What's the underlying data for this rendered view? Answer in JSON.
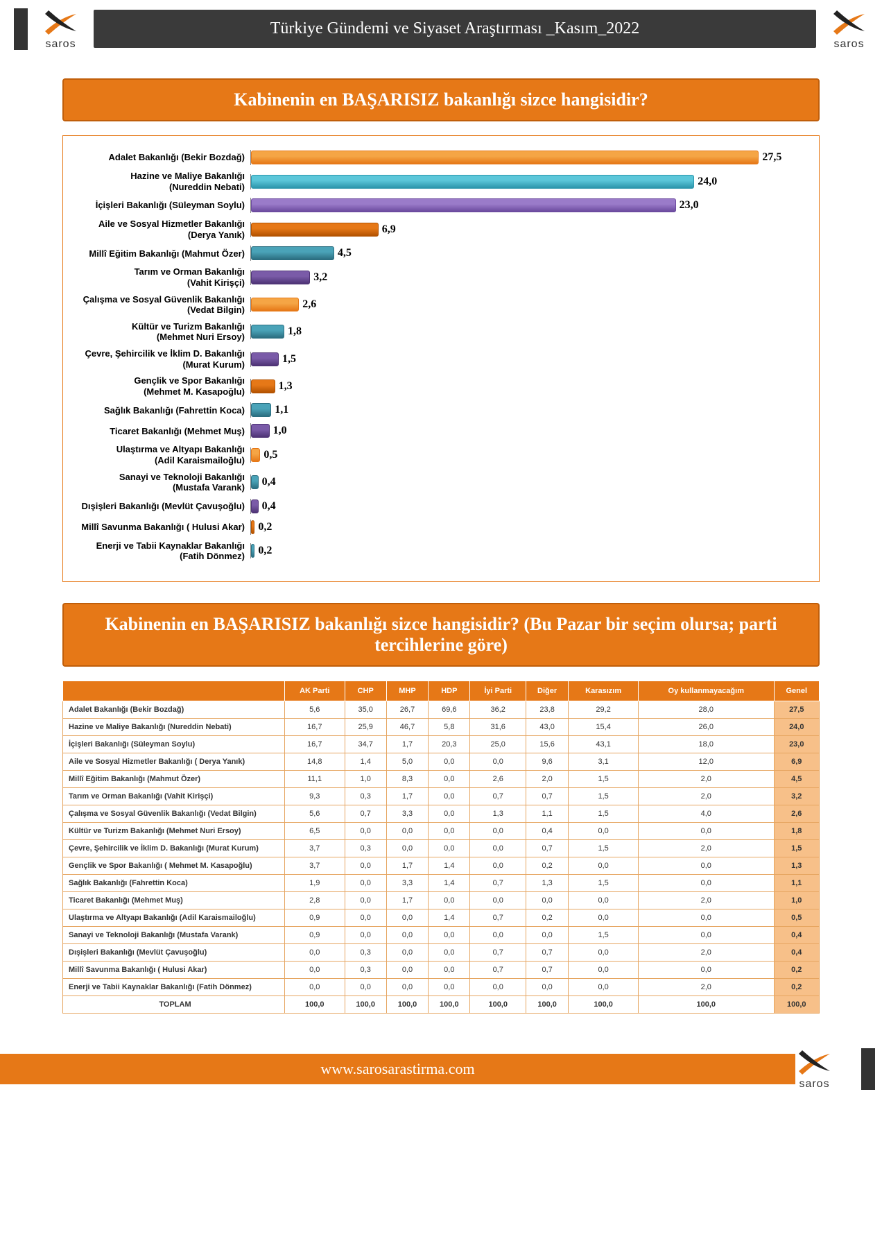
{
  "header": {
    "title": "Türkiye Gündemi ve Siyaset Araştırması _Kasım_2022",
    "logo_text": "saros",
    "logo_colors": {
      "orange": "#e67817",
      "dark": "#222222"
    }
  },
  "footer": {
    "url": "www.sarosarastirma.com"
  },
  "chart": {
    "title": "Kabinenin en BAŞARISIZ bakanlığı sizce hangisidir?",
    "type": "horizontal_bar",
    "max_value": 30,
    "value_fontsize": 16,
    "label_fontsize": 13,
    "background_color": "#ffffff",
    "border_color": "#e67817",
    "bars": [
      {
        "label": "Adalet Bakanlığı (Bekir Bozdağ)",
        "value": "27,5",
        "num": 27.5,
        "color": "#f5a545",
        "gradient": "#e67817"
      },
      {
        "label": "Hazine ve Maliye Bakanlığı (Nureddin Nebati)",
        "value": "24,0",
        "num": 24.0,
        "color": "#5bc6d9",
        "gradient": "#2b95ab"
      },
      {
        "label": "İçişleri Bakanlığı (Süleyman Soylu)",
        "value": "23,0",
        "num": 23.0,
        "color": "#9a7bc9",
        "gradient": "#6b4a9e"
      },
      {
        "label": "Aile ve Sosyal Hizmetler Bakanlığı (Derya Yanık)",
        "value": "6,9",
        "num": 6.9,
        "color": "#e67817",
        "gradient": "#b35200"
      },
      {
        "label": "Millî Eğitim Bakanlığı (Mahmut Özer)",
        "value": "4,5",
        "num": 4.5,
        "color": "#4aa3b8",
        "gradient": "#2b6e80"
      },
      {
        "label": "Tarım ve Orman Bakanlığı (Vahit Kirişçi)",
        "value": "3,2",
        "num": 3.2,
        "color": "#7a5ba8",
        "gradient": "#4e3375"
      },
      {
        "label": "Çalışma ve Sosyal Güvenlik Bakanlığı (Vedat Bilgin)",
        "value": "2,6",
        "num": 2.6,
        "color": "#f5a545",
        "gradient": "#e67817"
      },
      {
        "label": "Kültür ve Turizm Bakanlığı (Mehmet Nuri Ersoy)",
        "value": "1,8",
        "num": 1.8,
        "color": "#4aa3b8",
        "gradient": "#2b6e80"
      },
      {
        "label": "Çevre, Şehircilik ve İklim D. Bakanlığı (Murat Kurum)",
        "value": "1,5",
        "num": 1.5,
        "color": "#7a5ba8",
        "gradient": "#4e3375"
      },
      {
        "label": "Gençlik ve Spor Bakanlığı (Mehmet M. Kasapoğlu)",
        "value": "1,3",
        "num": 1.3,
        "color": "#e67817",
        "gradient": "#b35200"
      },
      {
        "label": "Sağlık Bakanlığı (Fahrettin Koca)",
        "value": "1,1",
        "num": 1.1,
        "color": "#4aa3b8",
        "gradient": "#2b6e80"
      },
      {
        "label": "Ticaret Bakanlığı (Mehmet Muş)",
        "value": "1,0",
        "num": 1.0,
        "color": "#7a5ba8",
        "gradient": "#4e3375"
      },
      {
        "label": "Ulaştırma ve Altyapı Bakanlığı (Adil Karaismailoğlu)",
        "value": "0,5",
        "num": 0.5,
        "color": "#f5a545",
        "gradient": "#e67817"
      },
      {
        "label": "Sanayi ve Teknoloji Bakanlığı (Mustafa Varank)",
        "value": "0,4",
        "num": 0.4,
        "color": "#4aa3b8",
        "gradient": "#2b6e80"
      },
      {
        "label": "Dışişleri Bakanlığı (Mevlüt Çavuşoğlu)",
        "value": "0,4",
        "num": 0.4,
        "color": "#7a5ba8",
        "gradient": "#4e3375"
      },
      {
        "label": "Millî Savunma Bakanlığı ( Hulusi Akar)",
        "value": "0,2",
        "num": 0.2,
        "color": "#e67817",
        "gradient": "#b35200"
      },
      {
        "label": "Enerji ve Tabii Kaynaklar Bakanlığı (Fatih Dönmez)",
        "value": "0,2",
        "num": 0.2,
        "color": "#4aa3b8",
        "gradient": "#2b6e80"
      }
    ]
  },
  "table": {
    "title": "Kabinenin en BAŞARISIZ bakanlığı sizce hangisidir? (Bu Pazar bir seçim olursa; parti tercihlerine göre)",
    "header_bg": "#e67817",
    "header_color": "#ffffff",
    "genel_bg": "#f7c089",
    "border_color": "#e6a560",
    "columns": [
      "",
      "AK Parti",
      "CHP",
      "MHP",
      "HDP",
      "İyi Parti",
      "Diğer",
      "Karasızım",
      "Oy kullanmayacağım",
      "Genel"
    ],
    "rows": [
      [
        "Adalet Bakanlığı (Bekir Bozdağ)",
        "5,6",
        "35,0",
        "26,7",
        "69,6",
        "36,2",
        "23,8",
        "29,2",
        "28,0",
        "27,5"
      ],
      [
        "Hazine ve Maliye Bakanlığı (Nureddin Nebati)",
        "16,7",
        "25,9",
        "46,7",
        "5,8",
        "31,6",
        "43,0",
        "15,4",
        "26,0",
        "24,0"
      ],
      [
        "İçişleri Bakanlığı (Süleyman Soylu)",
        "16,7",
        "34,7",
        "1,7",
        "20,3",
        "25,0",
        "15,6",
        "43,1",
        "18,0",
        "23,0"
      ],
      [
        "Aile ve Sosyal Hizmetler Bakanlığı ( Derya Yanık)",
        "14,8",
        "1,4",
        "5,0",
        "0,0",
        "0,0",
        "9,6",
        "3,1",
        "12,0",
        "6,9"
      ],
      [
        "Millî Eğitim Bakanlığı (Mahmut Özer)",
        "11,1",
        "1,0",
        "8,3",
        "0,0",
        "2,6",
        "2,0",
        "1,5",
        "2,0",
        "4,5"
      ],
      [
        "Tarım ve Orman Bakanlığı (Vahit Kirişçi)",
        "9,3",
        "0,3",
        "1,7",
        "0,0",
        "0,7",
        "0,7",
        "1,5",
        "2,0",
        "3,2"
      ],
      [
        "Çalışma ve Sosyal Güvenlik Bakanlığı (Vedat Bilgin)",
        "5,6",
        "0,7",
        "3,3",
        "0,0",
        "1,3",
        "1,1",
        "1,5",
        "4,0",
        "2,6"
      ],
      [
        "Kültür ve Turizm Bakanlığı (Mehmet Nuri Ersoy)",
        "6,5",
        "0,0",
        "0,0",
        "0,0",
        "0,0",
        "0,4",
        "0,0",
        "0,0",
        "1,8"
      ],
      [
        "Çevre, Şehircilik ve İklim D. Bakanlığı (Murat Kurum)",
        "3,7",
        "0,3",
        "0,0",
        "0,0",
        "0,0",
        "0,7",
        "1,5",
        "2,0",
        "1,5"
      ],
      [
        "Gençlik ve Spor Bakanlığı ( Mehmet M. Kasapoğlu)",
        "3,7",
        "0,0",
        "1,7",
        "1,4",
        "0,0",
        "0,2",
        "0,0",
        "0,0",
        "1,3"
      ],
      [
        "Sağlık Bakanlığı (Fahrettin Koca)",
        "1,9",
        "0,0",
        "3,3",
        "1,4",
        "0,7",
        "1,3",
        "1,5",
        "0,0",
        "1,1"
      ],
      [
        "Ticaret Bakanlığı (Mehmet Muş)",
        "2,8",
        "0,0",
        "1,7",
        "0,0",
        "0,0",
        "0,0",
        "0,0",
        "2,0",
        "1,0"
      ],
      [
        "Ulaştırma ve Altyapı Bakanlığı (Adil Karaismailoğlu)",
        "0,9",
        "0,0",
        "0,0",
        "1,4",
        "0,7",
        "0,2",
        "0,0",
        "0,0",
        "0,5"
      ],
      [
        "Sanayi ve Teknoloji Bakanlığı (Mustafa Varank)",
        "0,9",
        "0,0",
        "0,0",
        "0,0",
        "0,0",
        "0,0",
        "1,5",
        "0,0",
        "0,4"
      ],
      [
        "Dışişleri Bakanlığı (Mevlüt Çavuşoğlu)",
        "0,0",
        "0,3",
        "0,0",
        "0,0",
        "0,7",
        "0,7",
        "0,0",
        "2,0",
        "0,4"
      ],
      [
        "Millî Savunma Bakanlığı ( Hulusi Akar)",
        "0,0",
        "0,3",
        "0,0",
        "0,0",
        "0,7",
        "0,7",
        "0,0",
        "0,0",
        "0,2"
      ],
      [
        "Enerji ve Tabii Kaynaklar Bakanlığı (Fatih Dönmez)",
        "0,0",
        "0,0",
        "0,0",
        "0,0",
        "0,0",
        "0,0",
        "0,0",
        "2,0",
        "0,2"
      ]
    ],
    "total_row": [
      "TOPLAM",
      "100,0",
      "100,0",
      "100,0",
      "100,0",
      "100,0",
      "100,0",
      "100,0",
      "100,0",
      "100,0"
    ]
  }
}
